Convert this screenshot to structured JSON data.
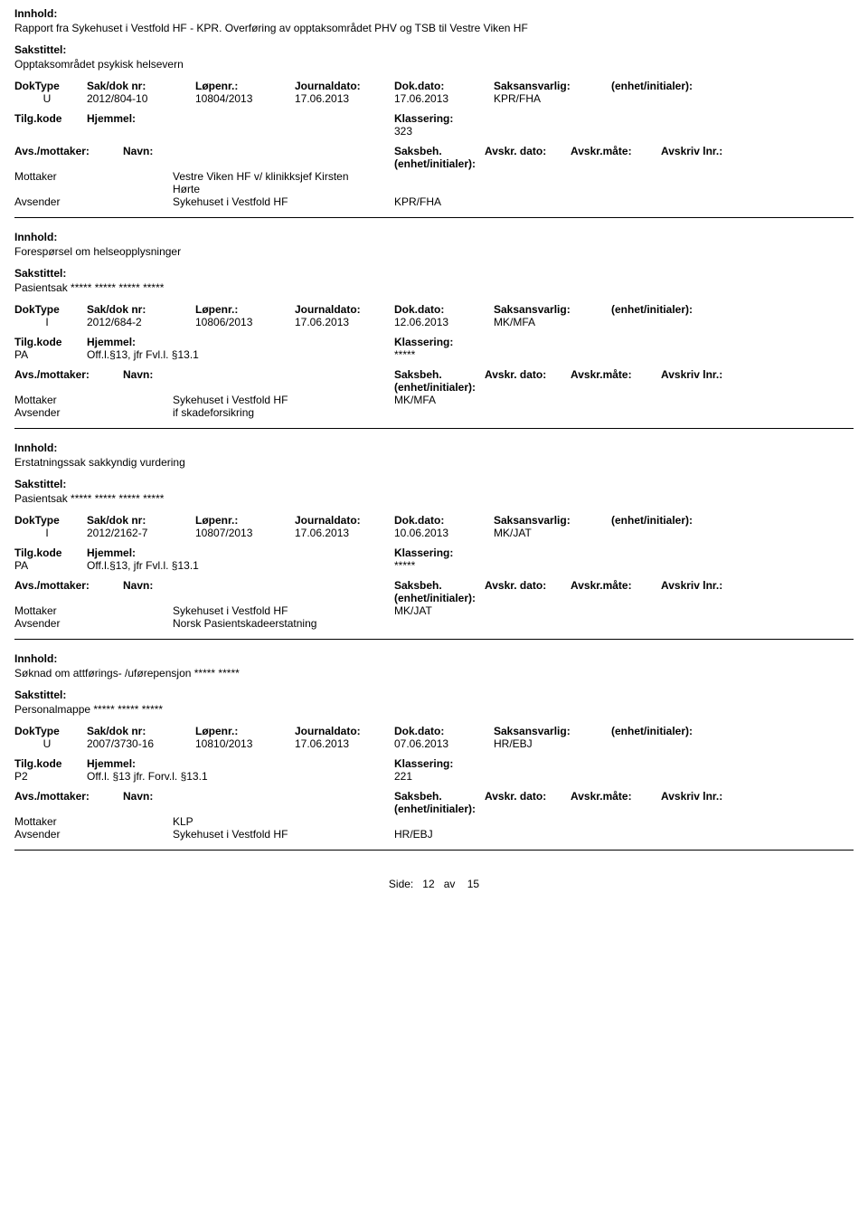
{
  "labels": {
    "innhold": "Innhold:",
    "sakstittel": "Sakstittel:",
    "doktype": "DokType",
    "sakdok": "Sak/dok nr:",
    "lopenr": "Løpenr.:",
    "journaldato": "Journaldato:",
    "dokdato": "Dok.dato:",
    "saksansvarlig": "Saksansvarlig:",
    "enhet": "(enhet/initialer):",
    "tilgkode": "Tilg.kode",
    "hjemmel": "Hjemmel:",
    "klassering": "Klassering:",
    "avsmottaker": "Avs./mottaker:",
    "navn": "Navn:",
    "saksbeh": "Saksbeh.(enhet/initialer):",
    "avskrdato": "Avskr. dato:",
    "avskrmate": "Avskr.måte:",
    "avskrivlnr": "Avskriv lnr.:",
    "mottaker": "Mottaker",
    "avsender": "Avsender"
  },
  "records": [
    {
      "innhold": "Rapport fra Sykehuset i Vestfold HF - KPR. Overføring av opptaksområdet PHV og TSB til Vestre Viken HF",
      "sakstittel": "Opptaksområdet psykisk helsevern",
      "doktype": "U",
      "sakdok": "2012/804-10",
      "lopenr": "10804/2013",
      "journaldato": "17.06.2013",
      "dokdato": "17.06.2013",
      "saksansvarlig": "KPR/FHA",
      "tilgkode": "",
      "hjemmel": "",
      "klassering": "323",
      "parties": [
        {
          "role": "Mottaker",
          "name_a": "Vestre Viken HF v/ klinikksjef Kirsten",
          "name_b": "Hørte",
          "saksbeh": ""
        },
        {
          "role": "Avsender",
          "name_a": "Sykehuset i Vestfold HF",
          "name_b": "",
          "saksbeh": "KPR/FHA"
        }
      ]
    },
    {
      "innhold": "Forespørsel om helseopplysninger",
      "sakstittel": "Pasientsak ***** ***** ***** *****",
      "doktype": "I",
      "sakdok": "2012/684-2",
      "lopenr": "10806/2013",
      "journaldato": "17.06.2013",
      "dokdato": "12.06.2013",
      "saksansvarlig": "MK/MFA",
      "tilgkode": "PA",
      "hjemmel": "Off.l.§13, jfr Fvl.l. §13.1",
      "klassering": "*****",
      "parties": [
        {
          "role": "Mottaker",
          "name_a": "Sykehuset i Vestfold HF",
          "name_b": "",
          "saksbeh": "MK/MFA"
        },
        {
          "role": "Avsender",
          "name_a": "if skadeforsikring",
          "name_b": "",
          "saksbeh": ""
        }
      ]
    },
    {
      "innhold": "Erstatningssak sakkyndig vurdering",
      "sakstittel": "Pasientsak ***** ***** ***** *****",
      "doktype": "I",
      "sakdok": "2012/2162-7",
      "lopenr": "10807/2013",
      "journaldato": "17.06.2013",
      "dokdato": "10.06.2013",
      "saksansvarlig": "MK/JAT",
      "tilgkode": "PA",
      "hjemmel": "Off.l.§13, jfr Fvl.l. §13.1",
      "klassering": "*****",
      "parties": [
        {
          "role": "Mottaker",
          "name_a": "Sykehuset i Vestfold HF",
          "name_b": "",
          "saksbeh": "MK/JAT"
        },
        {
          "role": "Avsender",
          "name_a": "Norsk Pasientskadeerstatning",
          "name_b": "",
          "saksbeh": ""
        }
      ]
    },
    {
      "innhold": "Søknad om attførings- /uførepensjon ***** *****",
      "sakstittel": "Personalmappe ***** ***** *****",
      "doktype": "U",
      "sakdok": "2007/3730-16",
      "lopenr": "10810/2013",
      "journaldato": "17.06.2013",
      "dokdato": "07.06.2013",
      "saksansvarlig": "HR/EBJ",
      "tilgkode": "P2",
      "hjemmel": "Off.l. §13  jfr. Forv.l. §13.1",
      "klassering": "221",
      "parties": [
        {
          "role": "Mottaker",
          "name_a": "KLP",
          "name_b": "",
          "saksbeh": ""
        },
        {
          "role": "Avsender",
          "name_a": "Sykehuset i Vestfold HF",
          "name_b": "",
          "saksbeh": "HR/EBJ"
        }
      ]
    }
  ],
  "footer": {
    "side": "Side:",
    "page": "12",
    "av": "av",
    "total": "15"
  }
}
